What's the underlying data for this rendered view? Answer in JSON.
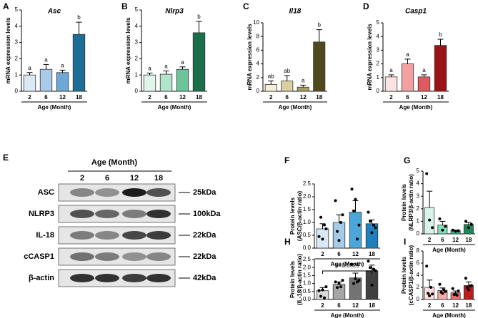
{
  "chart_data": [
    {
      "type": "bar",
      "panel": "A",
      "title": "Asc",
      "ylabel": [
        "mRNA expression levels"
      ],
      "xlabel": "Age (Month)",
      "categories": [
        "2",
        "6",
        "12",
        "18"
      ],
      "values": [
        1.0,
        1.35,
        1.15,
        3.5
      ],
      "errors": [
        0.15,
        0.3,
        0.15,
        0.75
      ],
      "letters": [
        "a",
        "a",
        "a",
        "b"
      ],
      "colors": [
        "#dbe8f6",
        "#a9cbe9",
        "#6fa7d6",
        "#1d6d96"
      ],
      "ylim": [
        0,
        5
      ],
      "yticks": [
        0,
        1,
        2,
        3,
        4,
        5
      ]
    },
    {
      "type": "bar",
      "panel": "B",
      "title": "Nlrp3",
      "ylabel": [
        "mRNA expression levels"
      ],
      "xlabel": "Age (Month)",
      "categories": [
        "2",
        "6",
        "12",
        "18"
      ],
      "values": [
        1.0,
        1.05,
        1.35,
        3.6
      ],
      "errors": [
        0.12,
        0.2,
        0.15,
        0.7
      ],
      "letters": [
        "a",
        "a",
        "a",
        "b"
      ],
      "colors": [
        "#e0f5ec",
        "#b2e6cc",
        "#6cc59a",
        "#1a6e4a"
      ],
      "ylim": [
        0,
        5
      ],
      "yticks": [
        0,
        1,
        2,
        3,
        4,
        5
      ]
    },
    {
      "type": "bar",
      "panel": "C",
      "title": "Il18",
      "ylabel": [
        "mRNA expression levels"
      ],
      "xlabel": "Age (Month)",
      "categories": [
        "2",
        "6",
        "12",
        "18"
      ],
      "values": [
        1.0,
        1.5,
        0.6,
        7.2
      ],
      "errors": [
        0.5,
        0.8,
        0.3,
        1.8
      ],
      "letters": [
        "ab",
        "ab",
        "a",
        "b"
      ],
      "colors": [
        "#f3efd9",
        "#d9cfa3",
        "#a89e63",
        "#4f4a1e"
      ],
      "ylim": [
        0,
        10
      ],
      "yticks": [
        0,
        2,
        4,
        6,
        8,
        10
      ]
    },
    {
      "type": "bar",
      "panel": "D",
      "title": "Casp1",
      "ylabel": [
        "mRNA expression levels"
      ],
      "xlabel": "Age (Month)",
      "categories": [
        "2",
        "6",
        "12",
        "18"
      ],
      "values": [
        1.05,
        2.0,
        1.05,
        3.35
      ],
      "errors": [
        0.15,
        0.35,
        0.15,
        0.45
      ],
      "letters": [
        "a",
        "a",
        "a",
        "b"
      ],
      "colors": [
        "#fbe3e3",
        "#f2a0a3",
        "#e05a5f",
        "#9b1218"
      ],
      "ylim": [
        0,
        5
      ],
      "yticks": [
        0,
        1,
        2,
        3,
        4,
        5
      ]
    },
    {
      "type": "bar",
      "panel": "F",
      "ylabel": [
        "Protein levels",
        "(ASC/β-actin ratio)"
      ],
      "xlabel": "Age (Month)",
      "categories": [
        "2",
        "6",
        "12",
        "18"
      ],
      "values": [
        0.75,
        1.0,
        1.4,
        0.95
      ],
      "errors": [
        0.2,
        0.3,
        0.45,
        0.15
      ],
      "points": [
        [
          0.45,
          1.2,
          0.35,
          0.9,
          0.75
        ],
        [
          1.85,
          0.65,
          0.3,
          1.0,
          1.3
        ],
        [
          2.3,
          1.45,
          1.9,
          0.35,
          0.9
        ],
        [
          1.4,
          1.05,
          0.6,
          0.9,
          0.8
        ]
      ],
      "colors": [
        "#d7e8f6",
        "#a4cbe8",
        "#4ba6db",
        "#1f7fbf"
      ],
      "ylim": [
        0,
        2.5
      ],
      "yticks": [
        {
          "value": 0,
          "label": "0.0"
        },
        0.5,
        {
          "value": 1,
          "label": "1.0"
        },
        1.5,
        {
          "value": 2,
          "label": "2.0"
        },
        2.5
      ]
    },
    {
      "type": "bar",
      "panel": "G",
      "ylabel": [
        "Protein levels",
        "(NLRP3/β-actin ratio)"
      ],
      "xlabel": "Age (Month)",
      "categories": [
        "2",
        "6",
        "12",
        "18"
      ],
      "values": [
        2.1,
        0.7,
        0.25,
        0.75
      ],
      "errors": [
        1.3,
        0.3,
        0.05,
        0.15
      ],
      "points": [
        [
          4.8,
          1.1,
          0.5
        ],
        [
          1.2,
          0.3,
          0.6
        ],
        [
          0.3,
          0.2,
          0.25
        ],
        [
          1.0,
          0.5,
          0.75
        ]
      ],
      "colors": [
        "#d8f4e8",
        "#7fe0b8",
        "#3fbf8a",
        "#1c8a5a"
      ],
      "ylim": [
        0,
        5
      ],
      "yticks": [
        0,
        1,
        2,
        3,
        4,
        5
      ]
    },
    {
      "type": "bar",
      "panel": "H",
      "ylabel": [
        "Protein levels",
        "(IL-18/β-actin ratio)"
      ],
      "xlabel": "Age (Month)",
      "categories": [
        "2",
        "6",
        "12",
        "18"
      ],
      "values": [
        0.55,
        0.95,
        1.35,
        1.8
      ],
      "errors": [
        0.2,
        0.15,
        0.3,
        0.35
      ],
      "points": [
        [
          0.55,
          0.2,
          0.6,
          0.1,
          0.8
        ],
        [
          1.1,
          0.75,
          1.0,
          0.8,
          1.2
        ],
        [
          2.2,
          1.0,
          1.3,
          1.1,
          1.2
        ],
        [
          2.4,
          2.0,
          0.9,
          1.9,
          1.8
        ]
      ],
      "annotation": "p=0.0529",
      "colors": [
        "#d9d9d9",
        "#a6a6a6",
        "#737373",
        "#404040"
      ],
      "ylim": [
        0,
        2.5
      ],
      "yticks": [
        {
          "value": 0,
          "label": "0.0"
        },
        0.5,
        {
          "value": 1,
          "label": "1.0"
        },
        1.5,
        {
          "value": 2,
          "label": "2.0"
        },
        2.5
      ]
    },
    {
      "type": "bar",
      "panel": "I",
      "ylabel": [
        "Protein levels",
        "(cCASP1/β-actin ratio)"
      ],
      "xlabel": "Age (Month)",
      "categories": [
        "2",
        "6",
        "12",
        "18"
      ],
      "values": [
        2.0,
        1.5,
        1.1,
        2.3
      ],
      "errors": [
        1.2,
        0.4,
        0.3,
        0.6
      ],
      "points": [
        [
          5.5,
          1.0,
          0.6,
          2.0,
          0.9
        ],
        [
          2.5,
          1.2,
          1.0,
          1.6,
          1.3
        ],
        [
          1.8,
          0.8,
          0.9,
          0.7,
          1.4
        ],
        [
          3.5,
          2.0,
          1.6,
          2.2,
          2.3
        ]
      ],
      "colors": [
        "#fde0df",
        "#f7aaa8",
        "#ef6f6b",
        "#c1191a"
      ],
      "ylim": [
        0,
        8
      ],
      "yticks": [
        0,
        2,
        4,
        6,
        8
      ]
    }
  ],
  "blot": {
    "panel": "E",
    "title": "Age (Month)",
    "columns": [
      "2",
      "6",
      "12",
      "18"
    ],
    "rows": [
      {
        "label": "ASC",
        "size": "25kDa"
      },
      {
        "label": "NLRP3",
        "size": "100kDa"
      },
      {
        "label": "IL-18",
        "size": "22kDa"
      },
      {
        "label": "cCASP1",
        "size": "22kDa"
      },
      {
        "label": "β-actin",
        "size": "42kDa"
      }
    ]
  }
}
